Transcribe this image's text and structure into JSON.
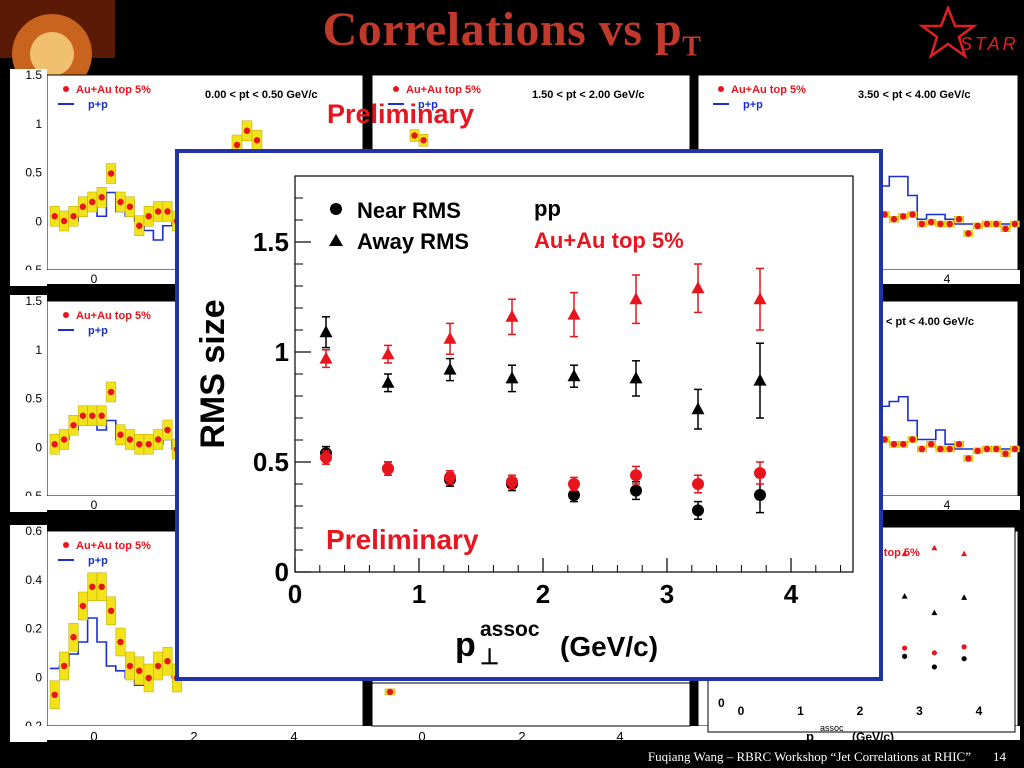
{
  "slide": {
    "title_main": "Correlations vs p",
    "title_sub": "T",
    "footer_text": "Fuqiang Wang – RBRC Workshop “Jet Correlations at RHIC”",
    "page_number": "14",
    "logo_text": "STAR"
  },
  "background_panels": {
    "legend_auau": "Au+Au top 5%",
    "legend_pp": "p+p",
    "preliminary": "Preliminary",
    "pt_ranges": [
      "0.00 < pt < 0.50 GeV/c",
      "1.50 < pt < 2.00 GeV/c",
      "3.50 < pt < 4.00 GeV/c",
      "< pt < 4.00 GeV/c"
    ],
    "row1_yticks": [
      "1.5",
      "1",
      "0.5",
      "0",
      "-0.5"
    ],
    "row2_yticks": [
      "1.5",
      "1",
      "0.5",
      "0",
      "-0.5"
    ],
    "row3_yticks": [
      "0.6",
      "0.4",
      "0.2",
      "0",
      "-0.2"
    ],
    "xticks_left": [
      "0",
      "2",
      "4"
    ],
    "xticks_mid": [
      "0",
      "2",
      "4"
    ],
    "xticks_right_partial": [
      "4"
    ],
    "mini_legend": "u top 5%",
    "mini_xticks": [
      "0",
      "1",
      "2",
      "3",
      "4"
    ],
    "mini_ytick": "0",
    "mini_xlabel": "(GeV/c)"
  },
  "chart_data": {
    "type": "scatter",
    "xlabel_main": "p",
    "xlabel_sup": "assoc",
    "xlabel_sub": "⊥",
    "xlabel_units": "(GeV/c)",
    "ylabel": "RMS size",
    "annotation": "Preliminary",
    "legend_near": "Near RMS",
    "legend_away": "Away RMS",
    "legend_pp": "pp",
    "legend_auau": "Au+Au top 5%",
    "xlim": [
      0,
      4.5
    ],
    "ylim": [
      0,
      1.8
    ],
    "xticks": [
      0,
      1,
      2,
      3,
      4
    ],
    "yticks": [
      0,
      0.5,
      1,
      1.5
    ],
    "ytick_labels": [
      "0",
      "0.5",
      "1",
      "1.5"
    ],
    "colors": {
      "pp": "#000000",
      "auau": "#e8141e"
    },
    "series": [
      {
        "name": "pp Near RMS",
        "marker": "circle",
        "color": "#000000",
        "x": [
          0.25,
          0.75,
          1.25,
          1.75,
          2.25,
          2.75,
          3.25,
          3.75
        ],
        "y": [
          0.54,
          0.47,
          0.42,
          0.4,
          0.35,
          0.37,
          0.28,
          0.35
        ],
        "err": [
          0.03,
          0.03,
          0.03,
          0.03,
          0.03,
          0.04,
          0.04,
          0.08
        ]
      },
      {
        "name": "pp Away RMS",
        "marker": "triangle",
        "color": "#000000",
        "x": [
          0.25,
          0.75,
          1.25,
          1.75,
          2.25,
          2.75,
          3.25,
          3.75
        ],
        "y": [
          1.09,
          0.86,
          0.92,
          0.88,
          0.89,
          0.88,
          0.74,
          0.87
        ],
        "err": [
          0.07,
          0.04,
          0.05,
          0.06,
          0.05,
          0.08,
          0.09,
          0.17
        ]
      },
      {
        "name": "Au+Au Near RMS",
        "marker": "circle",
        "color": "#e8141e",
        "x": [
          0.25,
          0.75,
          1.25,
          1.75,
          2.25,
          2.75,
          3.25,
          3.75
        ],
        "y": [
          0.52,
          0.47,
          0.43,
          0.41,
          0.4,
          0.44,
          0.4,
          0.45
        ],
        "err": [
          0.03,
          0.03,
          0.03,
          0.03,
          0.03,
          0.04,
          0.04,
          0.05
        ]
      },
      {
        "name": "Au+Au Away RMS",
        "marker": "triangle",
        "color": "#e8141e",
        "x": [
          0.25,
          0.75,
          1.25,
          1.75,
          2.25,
          2.75,
          3.25,
          3.75
        ],
        "y": [
          0.97,
          0.99,
          1.06,
          1.16,
          1.17,
          1.24,
          1.29,
          1.24
        ],
        "err": [
          0.04,
          0.04,
          0.07,
          0.08,
          0.1,
          0.11,
          0.11,
          0.14
        ]
      }
    ]
  }
}
